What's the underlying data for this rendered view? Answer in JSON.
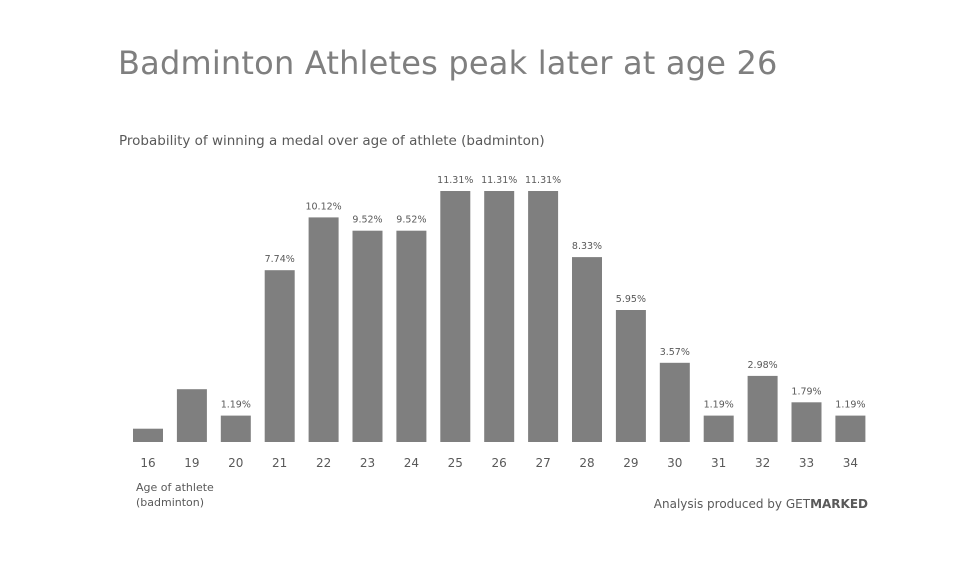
{
  "title": "Badminton Athletes peak later at age 26",
  "subtitle": "Probability of winning a medal over age of athlete (badminton)",
  "xaxis_title_line1": "Age of athlete",
  "xaxis_title_line2": "(badminton)",
  "credit": {
    "prefix": "Analysis produced by ",
    "brand_light": "GET",
    "brand_bold": "MARKED"
  },
  "chart_data": {
    "type": "bar",
    "title": "",
    "xlabel": "Age of athlete (badminton)",
    "ylabel": "",
    "categories": [
      "16",
      "19",
      "20",
      "21",
      "22",
      "23",
      "24",
      "25",
      "26",
      "27",
      "28",
      "29",
      "30",
      "31",
      "32",
      "33",
      "34"
    ],
    "values": [
      0.6,
      2.38,
      1.19,
      7.74,
      10.12,
      9.52,
      9.52,
      11.31,
      11.31,
      11.31,
      8.33,
      5.95,
      3.57,
      1.19,
      2.98,
      1.79,
      1.19
    ],
    "data_labels": [
      "",
      "",
      "1.19%",
      "7.74%",
      "10.12%",
      "9.52%",
      "9.52%",
      "11.31%",
      "11.31%",
      "11.31%",
      "8.33%",
      "5.95%",
      "3.57%",
      "1.19%",
      "2.98%",
      "1.79%",
      "1.19%"
    ],
    "ylim": [
      0,
      11.31
    ],
    "grid": false,
    "bar_color": "#7f7f7f"
  }
}
